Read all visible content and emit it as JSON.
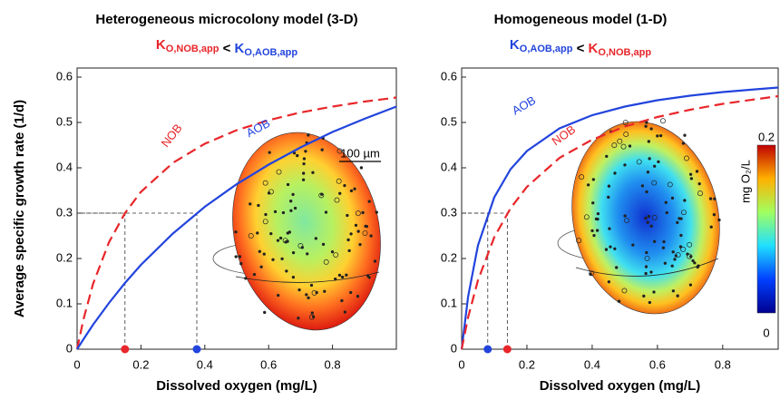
{
  "chart_data": [
    {
      "type": "line",
      "title": "Heterogeneous microcolony model (3-D)",
      "subtitle": [
        {
          "text": "K",
          "sub": "O,NOB,app",
          "color": "#e8262a"
        },
        {
          "text": " < ",
          "color": "#000000"
        },
        {
          "text": "K",
          "sub": "O,AOB,app",
          "color": "#2244dd"
        }
      ],
      "xlabel": "Dissolved oxygen  (mg/L)",
      "ylabel": "Average specific growth rate  (1/d)",
      "x": [
        0,
        0.02,
        0.05,
        0.1,
        0.15,
        0.2,
        0.3,
        0.4,
        0.5,
        0.6,
        0.7,
        0.8,
        0.9,
        1.0
      ],
      "series": [
        {
          "name": "NOB",
          "color": "#e8262a",
          "dashed": true,
          "values": [
            0,
            0.066,
            0.144,
            0.236,
            0.3,
            0.347,
            0.411,
            0.453,
            0.483,
            0.505,
            0.522,
            0.535,
            0.546,
            0.555
          ]
        },
        {
          "name": "AOB",
          "color": "#2244dd",
          "dashed": false,
          "values": [
            0,
            0.022,
            0.054,
            0.102,
            0.146,
            0.186,
            0.255,
            0.314,
            0.364,
            0.407,
            0.445,
            0.479,
            0.508,
            0.535
          ]
        }
      ],
      "half_saturation": [
        {
          "x": 0.15,
          "y": 0.3,
          "color": "#e8262a"
        },
        {
          "x": 0.375,
          "y": 0.3,
          "color": "#2244dd"
        }
      ],
      "xlim": [
        0,
        1
      ],
      "ylim": [
        0,
        0.62
      ],
      "xticks": [
        0,
        0.2,
        0.4,
        0.6,
        0.8
      ],
      "yticks": [
        0,
        0.1,
        0.2,
        0.3,
        0.4,
        0.5,
        0.6
      ],
      "scale_bar": "100 µm"
    },
    {
      "type": "line",
      "title": "Homogeneous model (1-D)",
      "subtitle": [
        {
          "text": "K",
          "sub": "O,AOB,app",
          "color": "#2244dd"
        },
        {
          "text": " < ",
          "color": "#000000"
        },
        {
          "text": "K",
          "sub": "O,NOB,app",
          "color": "#e8262a"
        }
      ],
      "xlabel": "Dissolved oxygen  (mg/L)",
      "x": [
        0,
        0.02,
        0.05,
        0.1,
        0.15,
        0.2,
        0.3,
        0.4,
        0.5,
        0.6,
        0.7,
        0.8,
        0.9,
        0.97
      ],
      "series": [
        {
          "name": "AOB",
          "color": "#2244dd",
          "dashed": false,
          "values": [
            0,
            0.117,
            0.229,
            0.335,
            0.397,
            0.437,
            0.487,
            0.516,
            0.535,
            0.549,
            0.559,
            0.567,
            0.573,
            0.577
          ]
        },
        {
          "name": "NOB",
          "color": "#e8262a",
          "dashed": true,
          "values": [
            0,
            0.071,
            0.152,
            0.247,
            0.311,
            0.358,
            0.422,
            0.462,
            0.491,
            0.512,
            0.528,
            0.541,
            0.551,
            0.558
          ]
        }
      ],
      "half_saturation": [
        {
          "x": 0.08,
          "y": 0.3,
          "color": "#2244dd"
        },
        {
          "x": 0.14,
          "y": 0.3,
          "color": "#e8262a"
        }
      ],
      "xlim": [
        0,
        0.97
      ],
      "ylim": [
        0,
        0.62
      ],
      "xticks": [
        0,
        0.2,
        0.4,
        0.6,
        0.8
      ],
      "yticks": [
        0,
        0.1,
        0.2,
        0.3,
        0.4,
        0.5,
        0.6
      ],
      "colorbar": {
        "top": 0.2,
        "bottom": 0,
        "label": "mg O₂/L"
      }
    }
  ]
}
